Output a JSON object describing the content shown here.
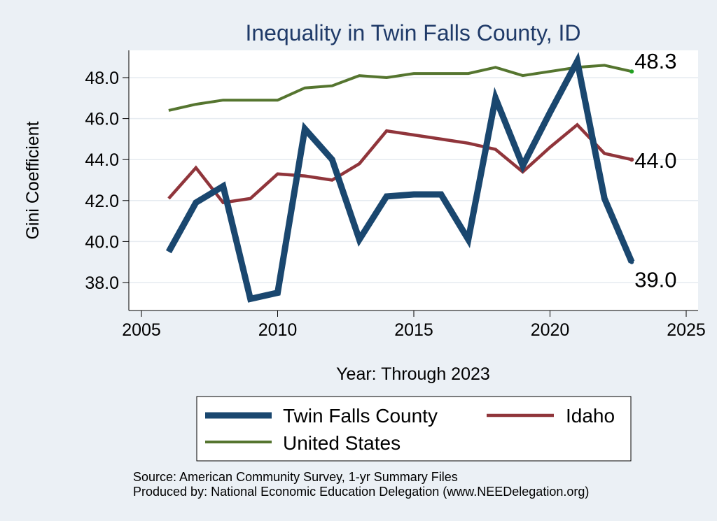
{
  "chart_data": {
    "type": "line",
    "title": "Inequality in Twin Falls County, ID",
    "xlabel": "Year: Through 2023",
    "ylabel": "Gini Coefficient",
    "xlim": [
      2005,
      2025
    ],
    "ylim": [
      36.7,
      49.3
    ],
    "x_ticks": [
      "2005",
      "2010",
      "2015",
      "2020",
      "2025"
    ],
    "y_ticks": [
      "38.0",
      "40.0",
      "42.0",
      "44.0",
      "46.0",
      "48.0"
    ],
    "grid": true,
    "x": [
      2006,
      2007,
      2008,
      2009,
      2010,
      2011,
      2012,
      2013,
      2014,
      2015,
      2016,
      2017,
      2018,
      2019,
      2020,
      2021,
      2022,
      2023
    ],
    "series": [
      {
        "name": "Twin Falls County",
        "color": "#1a476f",
        "values": [
          39.5,
          41.9,
          42.7,
          37.2,
          37.5,
          45.5,
          44.0,
          40.1,
          42.2,
          42.3,
          42.3,
          40.1,
          47.0,
          43.7,
          46.3,
          48.8,
          42.1,
          39.0
        ],
        "end_label": "39.0"
      },
      {
        "name": "Idaho",
        "color": "#90353b",
        "values": [
          42.1,
          43.6,
          41.9,
          42.1,
          43.3,
          43.2,
          43.0,
          43.8,
          45.4,
          45.2,
          45.0,
          44.8,
          44.5,
          43.4,
          44.6,
          45.7,
          44.3,
          44.0
        ],
        "end_label": "44.0"
      },
      {
        "name": "United States",
        "color": "#55752f",
        "values": [
          46.4,
          46.7,
          46.9,
          46.9,
          46.9,
          47.5,
          47.6,
          48.1,
          48.0,
          48.2,
          48.2,
          48.2,
          48.5,
          48.1,
          48.3,
          48.5,
          48.6,
          48.3
        ],
        "end_label": "48.3"
      }
    ],
    "legend": {
      "placement": "bottom",
      "entries": [
        "Twin Falls County",
        "Idaho",
        "United States"
      ]
    },
    "notes": [
      "Source: American Community Survey, 1-yr Summary Files",
      "Produced by: National Economic Education Delegation (www.NEEDelegation.org)"
    ]
  }
}
